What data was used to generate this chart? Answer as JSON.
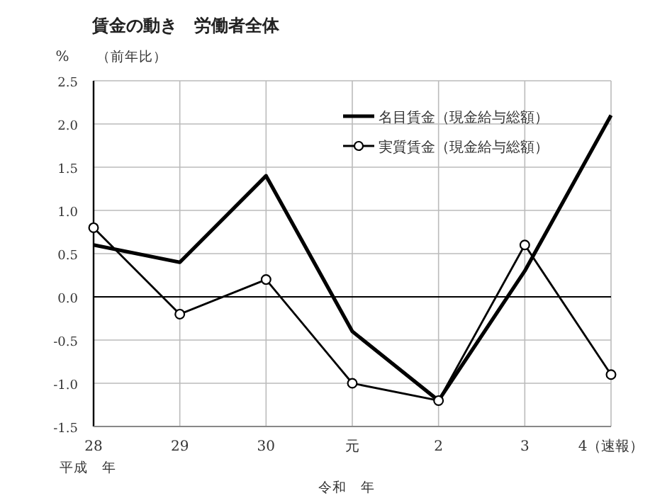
{
  "chart_data": {
    "type": "line",
    "title": "賃金の動き　労働者全体",
    "subtitle": "（前年比）",
    "ylabel": "%",
    "categories": [
      "28",
      "29",
      "30",
      "元",
      "2",
      "3",
      "4（速報）"
    ],
    "series": [
      {
        "name": "名目賃金（現金給与総額）",
        "color": "#000000",
        "values": [
          0.6,
          0.4,
          1.4,
          -0.4,
          -1.2,
          0.3,
          2.1
        ],
        "marker": "none"
      },
      {
        "name": "実質賃金（現金給与総額）",
        "color": "#000000",
        "values": [
          0.8,
          -0.2,
          0.2,
          -1.0,
          -1.2,
          0.6,
          -0.9
        ],
        "marker": "circle"
      }
    ],
    "ylim": [
      -1.5,
      2.5
    ],
    "yticks": [
      {
        "value": -1.5,
        "label": "-1.5"
      },
      {
        "value": -1,
        "label": "-1.0"
      },
      {
        "value": -0.5,
        "label": "-0.5"
      },
      {
        "value": 0,
        "label": "0.0"
      },
      {
        "value": 0.5,
        "label": "0.5"
      },
      {
        "value": 1,
        "label": "1.0"
      },
      {
        "value": 1.5,
        "label": "1.5"
      },
      {
        "value": 2,
        "label": "2.0"
      },
      {
        "value": 2.5,
        "label": "2.5"
      }
    ],
    "grid": true,
    "legend": "top right",
    "line_style": "solid",
    "ref_lines": [
      {
        "axis": "y",
        "value": 0,
        "color": "#000000"
      }
    ],
    "annotations": [
      "平成　年",
      "令和　年"
    ]
  }
}
